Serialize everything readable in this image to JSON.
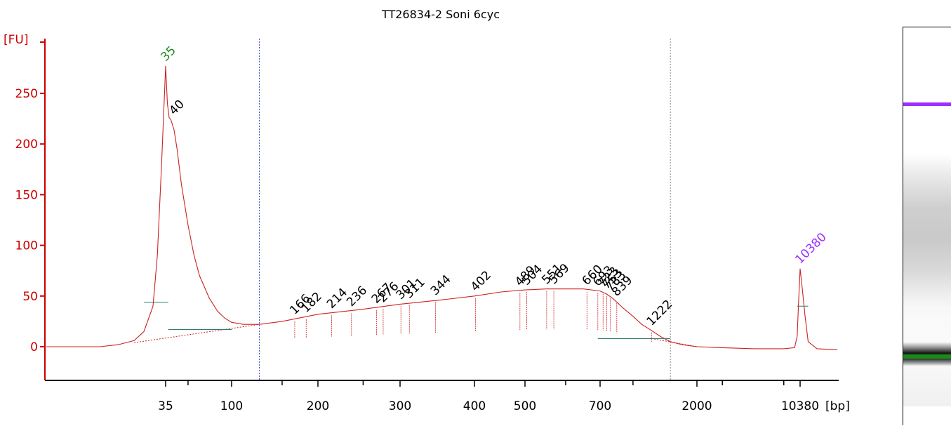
{
  "title": "TT26834-2 Soni 6cyc",
  "colors": {
    "axis": "#cc0000",
    "trace": "#cc2222",
    "lower_marker": "#1a8a1a",
    "upper_marker": "#9b30ff",
    "text": "#000000"
  },
  "chart_data": {
    "type": "line",
    "title": "TT26834-2 Soni 6cyc",
    "ylabel": "[FU]",
    "xlabel": "[bp]",
    "ylim": [
      -30,
      280
    ],
    "yticks": [
      0,
      50,
      100,
      150,
      200,
      250
    ],
    "x_scale": "nonlinear (ladder-calibrated bp)",
    "xtick_labels": [
      "35",
      "100",
      "200",
      "300",
      "400",
      "500",
      "700",
      "2000",
      "10380"
    ],
    "region_bounds_bp": [
      125,
      1500
    ],
    "series": [
      {
        "points_bp_fu": [
          [
            15,
            0
          ],
          [
            22,
            0
          ],
          [
            25,
            2
          ],
          [
            28,
            6
          ],
          [
            30,
            15
          ],
          [
            32,
            40
          ],
          [
            33,
            90
          ],
          [
            34,
            180
          ],
          [
            35,
            277
          ],
          [
            36,
            240
          ],
          [
            37,
            226
          ],
          [
            38,
            224
          ],
          [
            40,
            214
          ],
          [
            42,
            195
          ],
          [
            45,
            160
          ],
          [
            50,
            120
          ],
          [
            55,
            90
          ],
          [
            60,
            70
          ],
          [
            70,
            48
          ],
          [
            80,
            35
          ],
          [
            90,
            28
          ],
          [
            100,
            24
          ],
          [
            110,
            22
          ],
          [
            125,
            22
          ],
          [
            150,
            25
          ],
          [
            170,
            28
          ],
          [
            200,
            32
          ],
          [
            250,
            37
          ],
          [
            300,
            42
          ],
          [
            350,
            46
          ],
          [
            400,
            50
          ],
          [
            450,
            54
          ],
          [
            500,
            56
          ],
          [
            550,
            57
          ],
          [
            600,
            57
          ],
          [
            650,
            57
          ],
          [
            700,
            55
          ],
          [
            750,
            52
          ],
          [
            800,
            48
          ],
          [
            900,
            38
          ],
          [
            1000,
            30
          ],
          [
            1100,
            22
          ],
          [
            1222,
            16
          ],
          [
            1350,
            10
          ],
          [
            1500,
            5
          ],
          [
            1700,
            2
          ],
          [
            2000,
            0
          ],
          [
            3000,
            -1
          ],
          [
            5000,
            -2
          ],
          [
            8000,
            -2
          ],
          [
            9500,
            -1
          ],
          [
            9900,
            10
          ],
          [
            10100,
            40
          ],
          [
            10380,
            77
          ],
          [
            10500,
            60
          ],
          [
            10700,
            30
          ],
          [
            10900,
            5
          ],
          [
            11500,
            -2
          ],
          [
            13000,
            -3
          ]
        ]
      }
    ],
    "peak_labels": [
      {
        "label": "35",
        "bp": 35,
        "fu": 277,
        "color": "#1a8a1a"
      },
      {
        "label": "40",
        "bp": 40,
        "fu": 224,
        "color": "#000000"
      },
      {
        "label": "166",
        "bp": 166,
        "fu": 27,
        "color": "#000000"
      },
      {
        "label": "182",
        "bp": 182,
        "fu": 29,
        "color": "#000000"
      },
      {
        "label": "214",
        "bp": 214,
        "fu": 33,
        "color": "#000000"
      },
      {
        "label": "236",
        "bp": 236,
        "fu": 35,
        "color": "#000000"
      },
      {
        "label": "267",
        "bp": 267,
        "fu": 38,
        "color": "#000000"
      },
      {
        "label": "276",
        "bp": 276,
        "fu": 39,
        "color": "#000000"
      },
      {
        "label": "301",
        "bp": 301,
        "fu": 42,
        "color": "#000000"
      },
      {
        "label": "311",
        "bp": 311,
        "fu": 43,
        "color": "#000000"
      },
      {
        "label": "344",
        "bp": 344,
        "fu": 46,
        "color": "#000000"
      },
      {
        "label": "402",
        "bp": 402,
        "fu": 50,
        "color": "#000000"
      },
      {
        "label": "489",
        "bp": 489,
        "fu": 55,
        "color": "#000000"
      },
      {
        "label": "504",
        "bp": 504,
        "fu": 56,
        "color": "#000000"
      },
      {
        "label": "551",
        "bp": 551,
        "fu": 57,
        "color": "#000000"
      },
      {
        "label": "569",
        "bp": 569,
        "fu": 57,
        "color": "#000000"
      },
      {
        "label": "660",
        "bp": 660,
        "fu": 56,
        "color": "#000000"
      },
      {
        "label": "693",
        "bp": 693,
        "fu": 55,
        "color": "#000000"
      },
      {
        "label": "723",
        "bp": 723,
        "fu": 54,
        "color": "#000000"
      },
      {
        "label": "753",
        "bp": 753,
        "fu": 52,
        "color": "#000000"
      },
      {
        "label": "783",
        "bp": 783,
        "fu": 50,
        "color": "#000000"
      },
      {
        "label": "839",
        "bp": 839,
        "fu": 45,
        "color": "#000000"
      },
      {
        "label": "1222",
        "bp": 1222,
        "fu": 16,
        "color": "#000000"
      },
      {
        "label": "10380",
        "bp": 10380,
        "fu": 77,
        "color": "#9b30ff"
      }
    ]
  },
  "gel": {
    "upper_marker_color": "#9b30ff",
    "lower_marker_color": "#1a8a1a"
  }
}
